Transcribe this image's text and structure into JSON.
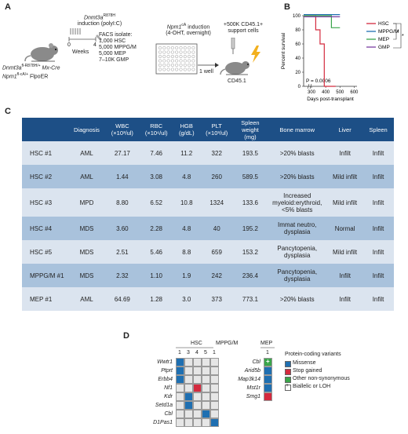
{
  "panels": {
    "a": "A",
    "b": "B",
    "c": "C",
    "d": "D"
  },
  "panel_a": {
    "mouse1_genotype_line1": "Dnmt3a",
    "mouse1_genotype_sup1": "fl-R878H/+",
    "mouse1_genotype_cre": "Mx-Cre",
    "mouse1_genotype_line2": "Npm1",
    "mouse1_genotype_sup2": "fl-cA/+",
    "mouse1_genotype_flpo": "FlpoER",
    "induction1_gene": "Dnmt3a",
    "induction1_sup": "R878H",
    "induction1_text": "induction (polyI:C)",
    "weeks_label": "Weeks",
    "week_start": "0",
    "week_end": "4",
    "facs_title": "FACS isolate:",
    "facs_lines": [
      "1,000 HSC",
      "5,000 MPPG/M",
      "5,000 MEP",
      "7–10K GMP"
    ],
    "induction2_gene": "Npm1",
    "induction2_sup": "cA",
    "induction2_text": "induction",
    "induction2_sub": "(4-OHT, overnight)",
    "well_label": "1 well",
    "support_line1": "+500K CD45.1+",
    "support_line2": "support cells",
    "recipient_label": "CD45.1"
  },
  "chart_data": {
    "type": "line",
    "step": true,
    "xlabel": "Days post-transplant",
    "ylabel": "Percent survival",
    "xticks": [
      300,
      400,
      500,
      600
    ],
    "yticks": [
      0,
      20,
      40,
      60,
      80,
      100
    ],
    "pvalue": "P = 0.0006",
    "series": [
      {
        "name": "HSC",
        "color": "#d42a3e",
        "points": [
          [
            0,
            100
          ],
          [
            330,
            100
          ],
          [
            330,
            80
          ],
          [
            360,
            80
          ],
          [
            360,
            60
          ],
          [
            390,
            60
          ],
          [
            390,
            0
          ],
          [
            470,
            0
          ]
        ]
      },
      {
        "name": "MPPG/M",
        "color": "#1f6fb1",
        "points": [
          [
            0,
            100
          ],
          [
            500,
            100
          ]
        ]
      },
      {
        "name": "MEP",
        "color": "#3aa54a",
        "points": [
          [
            0,
            100
          ],
          [
            440,
            100
          ],
          [
            440,
            83
          ],
          [
            500,
            83
          ]
        ]
      },
      {
        "name": "GMP",
        "color": "#7b3fa0",
        "points": [
          [
            0,
            100
          ],
          [
            500,
            100
          ]
        ]
      }
    ],
    "significance": [
      "*",
      "*"
    ]
  },
  "table": {
    "headers": [
      "",
      "Diagnosis",
      "WBC (×10³/ul)",
      "RBC (×10⁶/ul)",
      "HGB (g/dL)",
      "PLT (×10³/ul)",
      "Spleen weight (mg)",
      "Bone marrow",
      "Liver",
      "Spleen"
    ],
    "rows": [
      [
        "HSC #1",
        "AML",
        "27.17",
        "7.46",
        "11.2",
        "322",
        "193.5",
        ">20% blasts",
        "Infilt",
        "Infilt"
      ],
      [
        "HSC #2",
        "AML",
        "1.44",
        "3.08",
        "4.8",
        "260",
        "589.5",
        ">20% blasts",
        "Mild infilt",
        "Infilt"
      ],
      [
        "HSC #3",
        "MPD",
        "8.80",
        "6.52",
        "10.8",
        "1324",
        "133.6",
        "Increased myeloid:erythroid, <5% blasts",
        "Mild infilt",
        "Infilt"
      ],
      [
        "HSC #4",
        "MDS",
        "3.60",
        "2.28",
        "4.8",
        "40",
        "195.2",
        "Immat neutro, dysplasia",
        "Normal",
        "Infilt"
      ],
      [
        "HSC #5",
        "MDS",
        "2.51",
        "5.46",
        "8.8",
        "659",
        "153.2",
        "Pancytopenia, dysplasia",
        "Mild infilt",
        "Infilt"
      ],
      [
        "MPPG/M #1",
        "MDS",
        "2.32",
        "1.10",
        "1.9",
        "242",
        "236.4",
        "Pancytopenia, dysplasia",
        "Infilt",
        "Infilt"
      ],
      [
        "MEP #1",
        "AML",
        "64.69",
        "1.28",
        "3.0",
        "373",
        "773.1",
        ">20% blasts",
        "Infilt",
        "Infilt"
      ]
    ]
  },
  "panel_d": {
    "hsc_label": "HSC",
    "mpp_label": "MPPG/M",
    "mep_label": "MEP",
    "hsc_cols": [
      "1",
      "3",
      "4",
      "5"
    ],
    "mpp_cols": [
      "1"
    ],
    "mep_cols": [
      "1"
    ],
    "hsc_genes": [
      "Wwtr1",
      "Ptprt",
      "Erbb4",
      "Nf1",
      "Kdr",
      "Setd1a",
      "Cbl",
      "D1Pas1"
    ],
    "mep_genes": [
      "Cbl",
      "Arid5b",
      "Map3k14",
      "Mst1r",
      "Smg1"
    ],
    "legend_title": "Protein-coding variants",
    "legend": [
      {
        "label": "Missense",
        "color": "#1f6fb1"
      },
      {
        "label": "Stop gained",
        "color": "#d42a3e"
      },
      {
        "label": "Other non-synonymous",
        "color": "#3aa54a"
      },
      {
        "label": "Biallelic or LOH",
        "color": "#ffffff"
      }
    ],
    "biallelic_mark": "+"
  }
}
